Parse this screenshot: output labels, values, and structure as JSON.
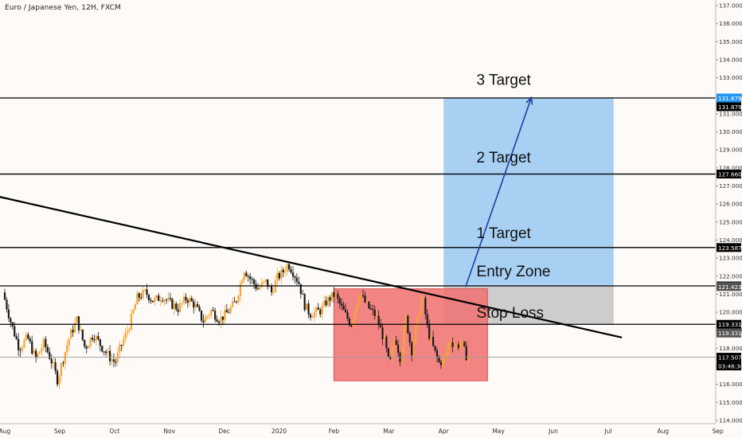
{
  "header": {
    "title": "Euro / Japanese Yen, 12H, FXCM"
  },
  "chart_data": {
    "type": "candlestick",
    "symbol": "Euro / Japanese Yen, 12H, FXCM",
    "x_axis": {
      "ticks": [
        "Aug",
        "Sep",
        "Oct",
        "Nov",
        "Dec",
        "2020",
        "Feb",
        "Mar",
        "Apr",
        "May",
        "Jun",
        "Jul",
        "Aug",
        "Sep"
      ]
    },
    "y_axis": {
      "ylim": [
        113.7,
        137.3
      ],
      "ticks": [
        "114.000",
        "115.000",
        "116.000",
        "117.000",
        "118.000",
        "119.000",
        "120.000",
        "121.000",
        "122.000",
        "123.000",
        "124.000",
        "125.000",
        "126.000",
        "127.000",
        "128.000",
        "129.000",
        "130.000",
        "131.000",
        "132.000",
        "133.000",
        "134.000",
        "135.000",
        "136.000",
        "137.000"
      ]
    },
    "price_series": [
      {
        "m": 0.0,
        "p": 121.1
      },
      {
        "m": 0.15,
        "p": 119.4
      },
      {
        "m": 0.3,
        "p": 118.0
      },
      {
        "m": 0.45,
        "p": 118.6
      },
      {
        "m": 0.6,
        "p": 117.4
      },
      {
        "m": 0.75,
        "p": 118.3
      },
      {
        "m": 0.9,
        "p": 117.2
      },
      {
        "m": 1.0,
        "p": 116.2
      },
      {
        "m": 1.05,
        "p": 116.9
      },
      {
        "m": 1.2,
        "p": 118.5
      },
      {
        "m": 1.35,
        "p": 119.6
      },
      {
        "m": 1.5,
        "p": 118.0
      },
      {
        "m": 1.65,
        "p": 118.8
      },
      {
        "m": 1.8,
        "p": 118.1
      },
      {
        "m": 1.95,
        "p": 117.5
      },
      {
        "m": 2.05,
        "p": 117.2
      },
      {
        "m": 2.15,
        "p": 118.1
      },
      {
        "m": 2.3,
        "p": 119.2
      },
      {
        "m": 2.45,
        "p": 120.8
      },
      {
        "m": 2.6,
        "p": 121.1
      },
      {
        "m": 2.75,
        "p": 120.6
      },
      {
        "m": 2.9,
        "p": 120.9
      },
      {
        "m": 3.05,
        "p": 120.5
      },
      {
        "m": 3.2,
        "p": 120.2
      },
      {
        "m": 3.35,
        "p": 120.8
      },
      {
        "m": 3.5,
        "p": 120.4
      },
      {
        "m": 3.65,
        "p": 119.5
      },
      {
        "m": 3.8,
        "p": 120.1
      },
      {
        "m": 3.95,
        "p": 119.6
      },
      {
        "m": 4.1,
        "p": 120.0
      },
      {
        "m": 4.25,
        "p": 120.6
      },
      {
        "m": 4.4,
        "p": 122.4
      },
      {
        "m": 4.5,
        "p": 121.9
      },
      {
        "m": 4.65,
        "p": 121.3
      },
      {
        "m": 4.8,
        "p": 121.7
      },
      {
        "m": 4.9,
        "p": 121.1
      },
      {
        "m": 5.0,
        "p": 121.9
      },
      {
        "m": 5.1,
        "p": 122.2
      },
      {
        "m": 5.2,
        "p": 122.7
      },
      {
        "m": 5.3,
        "p": 122.2
      },
      {
        "m": 5.4,
        "p": 121.6
      },
      {
        "m": 5.5,
        "p": 120.4
      },
      {
        "m": 5.6,
        "p": 119.9
      },
      {
        "m": 5.7,
        "p": 120.0
      },
      {
        "m": 5.8,
        "p": 120.1
      },
      {
        "m": 5.9,
        "p": 120.6
      },
      {
        "m": 6.05,
        "p": 121.0
      },
      {
        "m": 6.2,
        "p": 120.1
      },
      {
        "m": 6.35,
        "p": 119.3
      },
      {
        "m": 6.5,
        "p": 121.1
      },
      {
        "m": 6.65,
        "p": 120.3
      },
      {
        "m": 6.8,
        "p": 119.8
      },
      {
        "m": 6.95,
        "p": 118.5
      },
      {
        "m": 7.05,
        "p": 117.0
      },
      {
        "m": 7.15,
        "p": 118.7
      },
      {
        "m": 7.25,
        "p": 117.4
      },
      {
        "m": 7.35,
        "p": 119.7
      },
      {
        "m": 7.45,
        "p": 117.8
      },
      {
        "m": 7.55,
        "p": 119.4
      },
      {
        "m": 7.65,
        "p": 120.9
      },
      {
        "m": 7.75,
        "p": 119.0
      },
      {
        "m": 7.85,
        "p": 118.0
      },
      {
        "m": 7.95,
        "p": 117.2
      },
      {
        "m": 8.05,
        "p": 117.4
      },
      {
        "m": 8.15,
        "p": 118.5
      },
      {
        "m": 8.25,
        "p": 118.1
      },
      {
        "m": 8.35,
        "p": 118.3
      },
      {
        "m": 8.45,
        "p": 117.6
      }
    ],
    "trendline": {
      "start": {
        "m": -0.1,
        "p": 126.4
      },
      "end": {
        "m": 11.25,
        "p": 118.6
      }
    },
    "horizontal_levels": [
      {
        "price": 131.879,
        "label": "131.879"
      },
      {
        "price": 127.66,
        "label": "127.660"
      },
      {
        "price": 123.587,
        "label": "123.587"
      },
      {
        "price": 121.459,
        "label": "121.459"
      },
      {
        "price": 119.331,
        "label": "119.331"
      },
      {
        "price": 117.507,
        "label": "117.507"
      }
    ],
    "price_tags": [
      {
        "price": 131.879,
        "text": "131.879",
        "bg": "#2196f3"
      },
      {
        "price": 131.879,
        "text": "131.879",
        "bg": "#000000"
      },
      {
        "price": 127.66,
        "text": "127.660",
        "bg": "#000000"
      },
      {
        "price": 123.587,
        "text": "123.587",
        "bg": "#000000"
      },
      {
        "price": 121.459,
        "text": "121.459",
        "bg": "#000000"
      },
      {
        "price": 121.423,
        "text": "121.423",
        "bg": "#555555"
      },
      {
        "price": 119.331,
        "text": "119.331",
        "bg": "#000000"
      },
      {
        "price": 119.331,
        "text": "119.331",
        "bg": "#555555"
      },
      {
        "price": 117.507,
        "text": "117.507",
        "bg": "#000000"
      },
      {
        "price": 117.507,
        "text": "03:46:36",
        "bg": "#000000"
      }
    ],
    "annotations": [
      {
        "text": "3 Target",
        "m": 8.6,
        "p": 132.6
      },
      {
        "text": "2 Target",
        "m": 8.6,
        "p": 128.3
      },
      {
        "text": "1 Target",
        "m": 8.6,
        "p": 124.1
      },
      {
        "text": "Entry Zone",
        "m": 8.6,
        "p": 122.0
      },
      {
        "text": "Stop Loss",
        "m": 8.6,
        "p": 119.7
      }
    ],
    "zones": [
      {
        "name": "profit-zone",
        "m1": 8.0,
        "m2": 11.1,
        "p_low": 121.459,
        "p_high": 131.879,
        "color": "#9ecbf2"
      },
      {
        "name": "risk-zone",
        "m1": 8.0,
        "m2": 11.1,
        "p_low": 119.331,
        "p_high": 121.459,
        "color": "#c8c8c8"
      },
      {
        "name": "range-box",
        "m1": 6.0,
        "m2": 8.8,
        "p_low": 116.2,
        "p_high": 121.3,
        "color": "#f07070"
      }
    ],
    "arrow": {
      "from": {
        "m": 8.4,
        "p": 121.4
      },
      "to": {
        "m": 9.6,
        "p": 131.9
      }
    },
    "colors": {
      "background": "#fdfaf7",
      "up": "#f7a531",
      "down": "#1a1a1a",
      "axis_text": "#333333",
      "line": "#000000",
      "arrow": "#1e3fa0"
    },
    "grid": false
  }
}
